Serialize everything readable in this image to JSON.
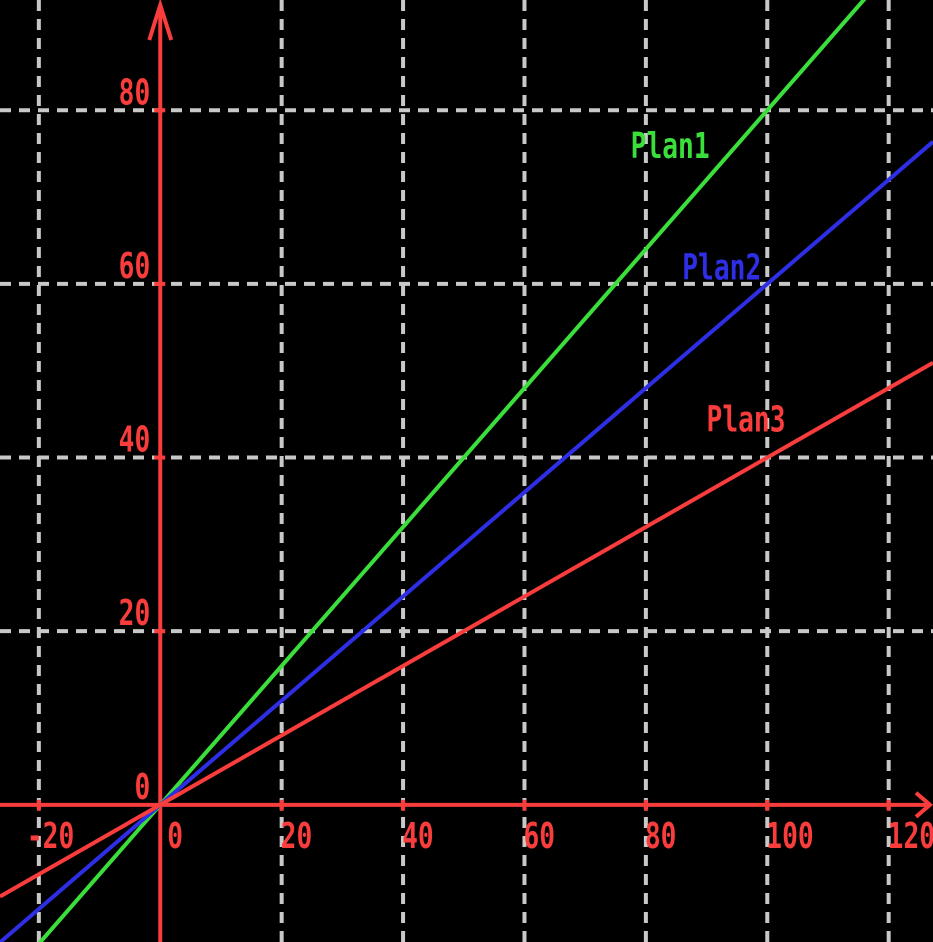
{
  "chart_data": {
    "type": "line",
    "title": "",
    "background_color": "#000000",
    "axes": {
      "color": "#f93c3c",
      "tick_label_color": "#f93c3c",
      "x_ticks": [
        -20,
        0,
        20,
        40,
        60,
        80,
        100,
        120
      ],
      "y_ticks": [
        0,
        20,
        40,
        60,
        80
      ],
      "x_range": [
        -26.4,
        127.3
      ],
      "y_range": [
        -15.8,
        92.7
      ]
    },
    "grid": {
      "visible": true,
      "style": "dashed",
      "color": "#c8c8c8",
      "x_lines": [
        -20,
        20,
        40,
        60,
        80,
        100,
        120
      ],
      "y_lines": [
        20,
        40,
        60,
        80
      ]
    },
    "legend_position": "inline-labels",
    "series": [
      {
        "name": "Plan1",
        "color": "#3bdf3b",
        "slope": 0.8,
        "intercept": 0,
        "points": [
          [
            0,
            0
          ],
          [
            25,
            20
          ],
          [
            50,
            40
          ],
          [
            75,
            60
          ],
          [
            100,
            80
          ]
        ],
        "label": {
          "text": "Plan1",
          "x": 84,
          "y": 76
        }
      },
      {
        "name": "Plan2",
        "color": "#2e2ee6",
        "slope": 0.6,
        "intercept": 0,
        "points": [
          [
            0,
            0
          ],
          [
            25,
            15
          ],
          [
            50,
            30
          ],
          [
            75,
            45
          ],
          [
            100,
            60
          ]
        ],
        "label": {
          "text": "Plan2",
          "x": 92.5,
          "y": 62
        }
      },
      {
        "name": "Plan3",
        "color": "#f93c3c",
        "slope": 0.4,
        "intercept": 0,
        "points": [
          [
            0,
            0
          ],
          [
            25,
            10
          ],
          [
            50,
            20
          ],
          [
            75,
            30
          ],
          [
            100,
            40
          ]
        ],
        "label": {
          "text": "Plan3",
          "x": 96.5,
          "y": 44.5
        }
      }
    ]
  }
}
